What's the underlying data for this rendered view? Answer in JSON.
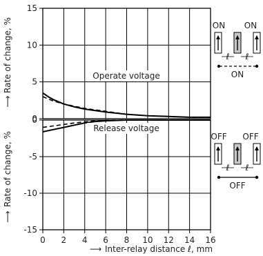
{
  "chart_data": [
    {
      "type": "line",
      "title": "Operate voltage",
      "ylabel": "Rate of change, %",
      "xlabel": "",
      "xlim": [
        0,
        16
      ],
      "ylim": [
        0,
        15
      ],
      "x_ticks": [
        "0",
        "2",
        "4",
        "6",
        "8",
        "10",
        "12",
        "14",
        "16"
      ],
      "y_ticks": [
        "0",
        "5",
        "10",
        "15"
      ],
      "grid": true,
      "series": [
        {
          "style": "solid",
          "x": [
            0,
            0.5,
            1,
            2,
            3,
            4,
            6,
            8,
            10,
            12,
            14,
            16
          ],
          "y": [
            3.5,
            3.0,
            2.6,
            2.0,
            1.6,
            1.3,
            0.9,
            0.6,
            0.4,
            0.3,
            0.2,
            0.2
          ]
        },
        {
          "style": "dashed",
          "x": [
            0,
            0.5,
            1,
            2,
            3,
            4,
            6,
            8,
            10,
            12,
            14,
            16
          ],
          "y": [
            3.0,
            2.7,
            2.4,
            2.0,
            1.7,
            1.4,
            1.0,
            0.6,
            0.4,
            0.3,
            0.2,
            0.2
          ]
        }
      ],
      "inset": {
        "left": "ON",
        "right": "ON",
        "bottom": "ON",
        "connector": "dashed"
      }
    },
    {
      "type": "line",
      "title": "Release voltage",
      "ylabel": "Rate of change, %",
      "xlabel": "Inter-relay distance ℓ, mm",
      "xlim": [
        0,
        16
      ],
      "ylim": [
        -15,
        0
      ],
      "x_ticks": [
        "0",
        "2",
        "4",
        "6",
        "8",
        "10",
        "12",
        "14",
        "16"
      ],
      "y_ticks": [
        "0",
        "-5",
        "-10",
        "-15"
      ],
      "grid": true,
      "series": [
        {
          "style": "solid",
          "x": [
            0,
            1,
            2,
            3,
            4,
            5,
            6,
            8,
            10,
            12,
            14,
            16
          ],
          "y": [
            -1.6,
            -1.3,
            -1.0,
            -0.7,
            -0.4,
            -0.2,
            -0.1,
            0,
            0,
            0,
            0,
            0
          ]
        },
        {
          "style": "dashed",
          "x": [
            0,
            1,
            2,
            3,
            4,
            5,
            6,
            8,
            10,
            12,
            14,
            16
          ],
          "y": [
            -1.0,
            -0.8,
            -0.6,
            -0.4,
            -0.25,
            -0.1,
            0,
            0,
            0,
            0,
            0,
            0
          ]
        }
      ],
      "inset": {
        "left": "OFF",
        "right": "OFF",
        "bottom": "OFF",
        "connector": "solid"
      }
    }
  ],
  "inset_label": "ℓ"
}
